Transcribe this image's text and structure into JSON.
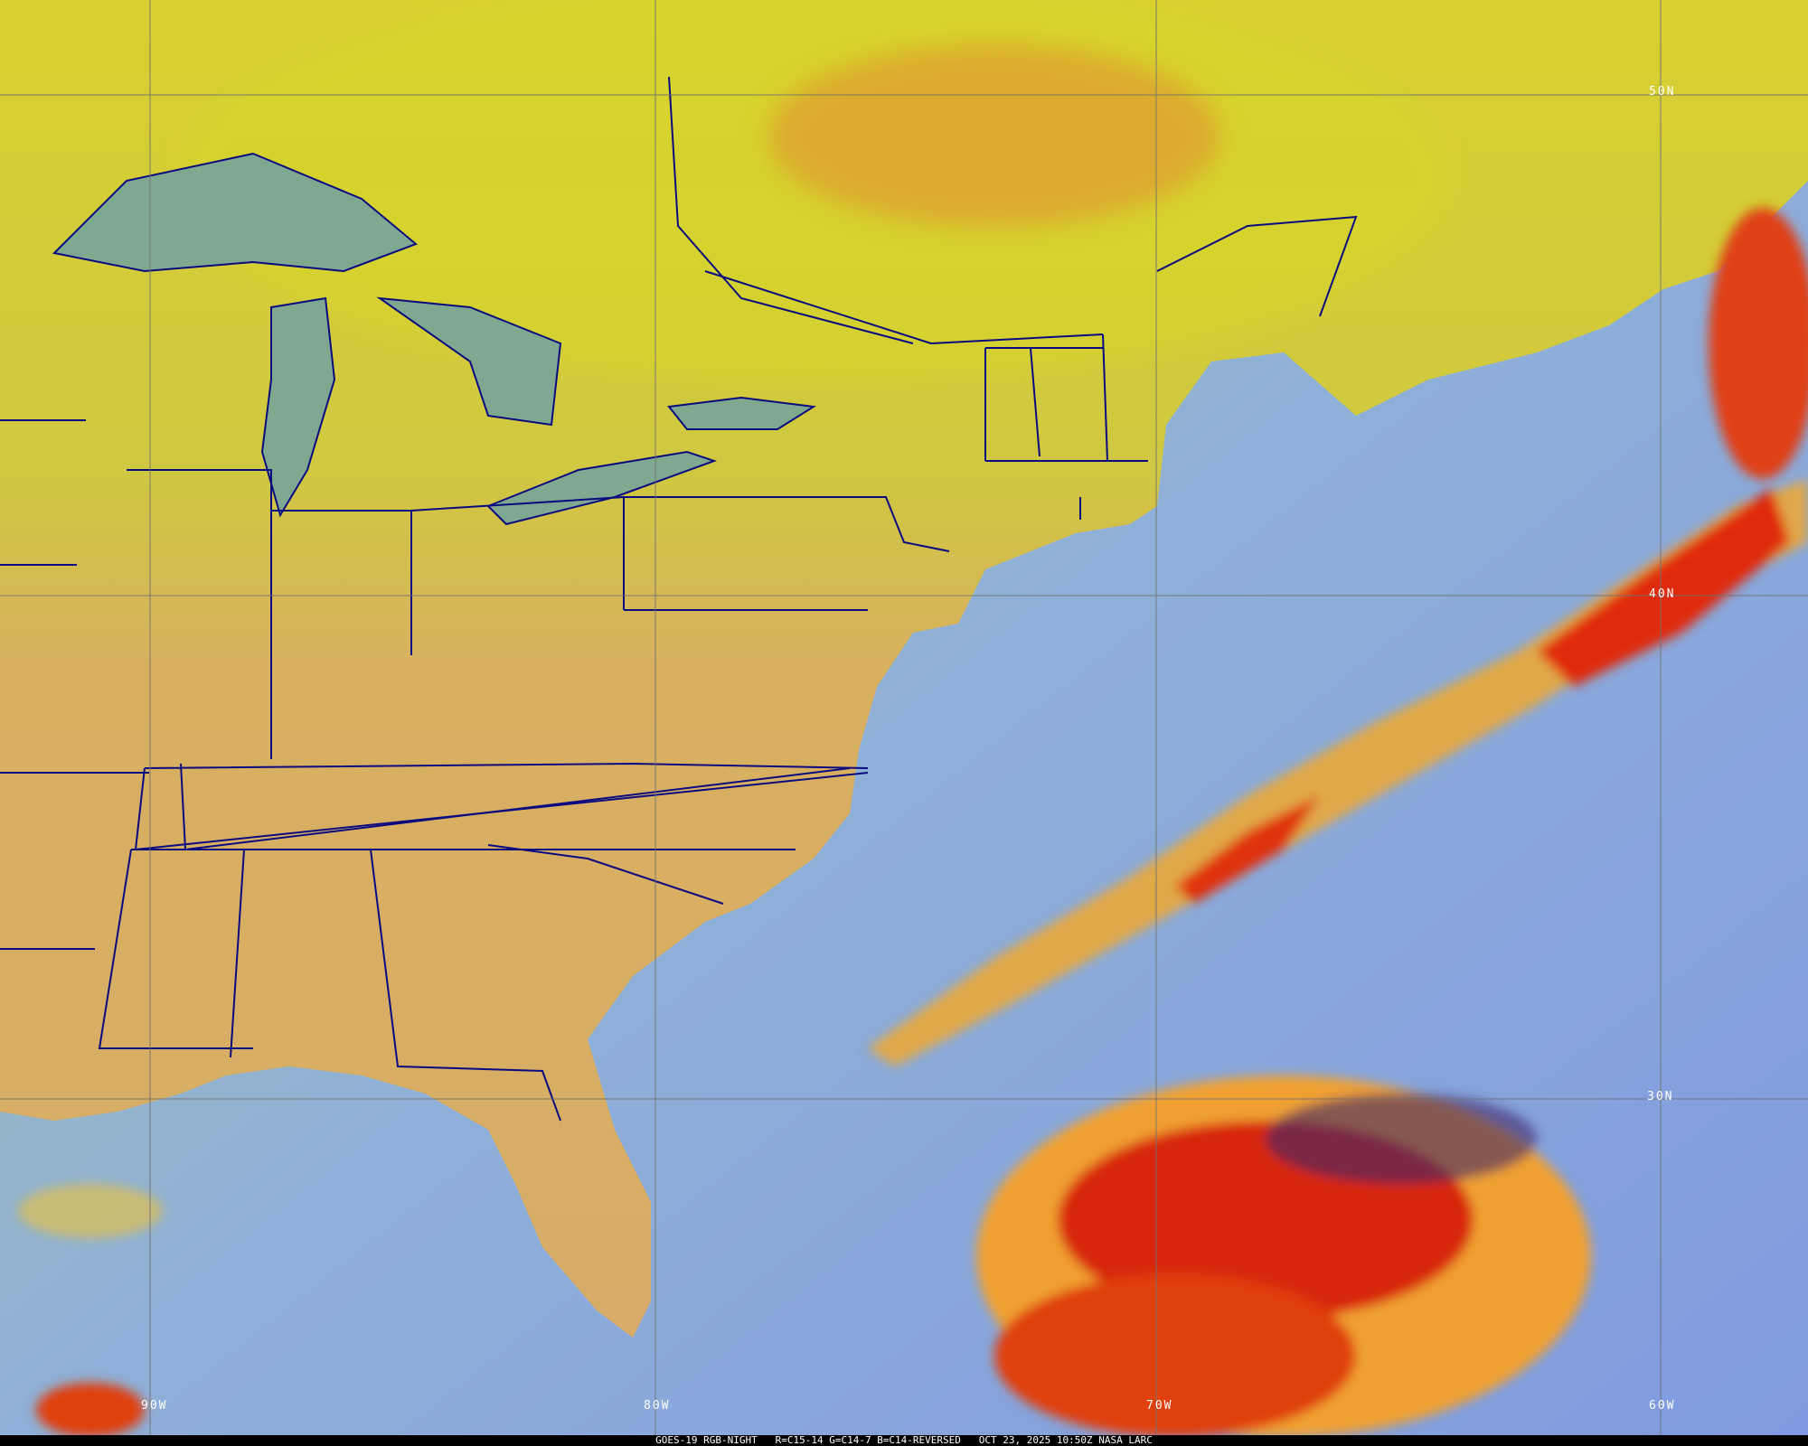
{
  "product": {
    "satellite": "GOES-19",
    "product_name": "RGB-NIGHT",
    "recipe": "R=C15-14 G=C14-7 B=C14-REVERSED",
    "timestamp": "OCT 23, 2025 10:50Z",
    "credit": "NASA LARC"
  },
  "caption": "GOES-19 RGB-NIGHT   R=C15-14 G=C14-7 B=C14-REVERSED   OCT 23, 2025 10:50Z NASA LARC",
  "grid": {
    "latitudes": [
      "50N",
      "40N",
      "30N"
    ],
    "longitudes": [
      "90W",
      "80W",
      "70W",
      "60W"
    ]
  },
  "colors": {
    "ocean": "#7f9fd8",
    "land": "#d8b060",
    "north_land": "#c8c040",
    "boundaries": "#0a0a80",
    "high_cloud": "#e03010",
    "mid_cloud": "#f0b040",
    "gridline": "#707070"
  }
}
